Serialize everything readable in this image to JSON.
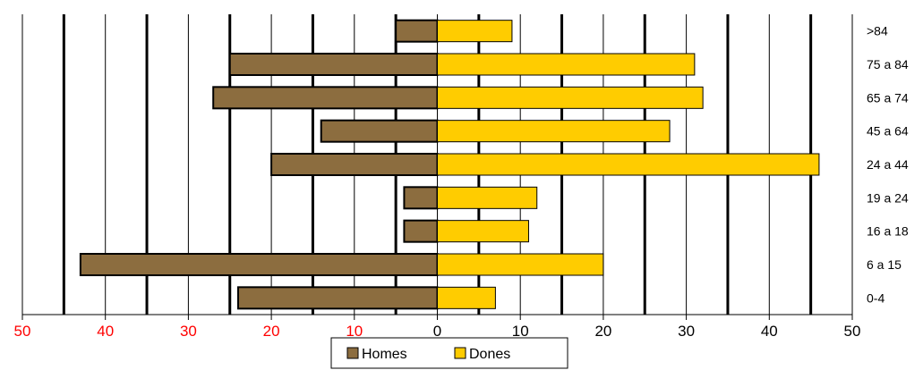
{
  "chart_data": {
    "type": "bar",
    "orientation": "horizontal",
    "layout": "population-pyramid",
    "categories": [
      ">84",
      "75 a 84",
      "65 a 74",
      "45 a 64",
      "24 a 44",
      "19 a 24",
      "16 a 18",
      "6 a 15",
      "0-4"
    ],
    "series": [
      {
        "name": "Homes",
        "side": "left",
        "values": [
          5,
          25,
          27,
          14,
          20,
          4,
          4,
          43,
          24
        ]
      },
      {
        "name": "Dones",
        "side": "right",
        "values": [
          9,
          31,
          32,
          28,
          46,
          12,
          11,
          20,
          7
        ]
      }
    ],
    "xlim": [
      -50,
      50
    ],
    "x_ticks_left": [
      "50",
      "40",
      "30",
      "20",
      "10"
    ],
    "x_ticks_right": [
      "0",
      "10",
      "20",
      "30",
      "40",
      "50"
    ],
    "x_ticks_left_color": "#ff0000",
    "x_ticks_right_color": "#000000",
    "grid": true,
    "legend_placement": "bottom-center",
    "title": "",
    "xlabel": "",
    "ylabel": ""
  },
  "colors": {
    "homes": "#8c6d3f",
    "dones": "#ffcc00",
    "gridline": "#000000"
  }
}
